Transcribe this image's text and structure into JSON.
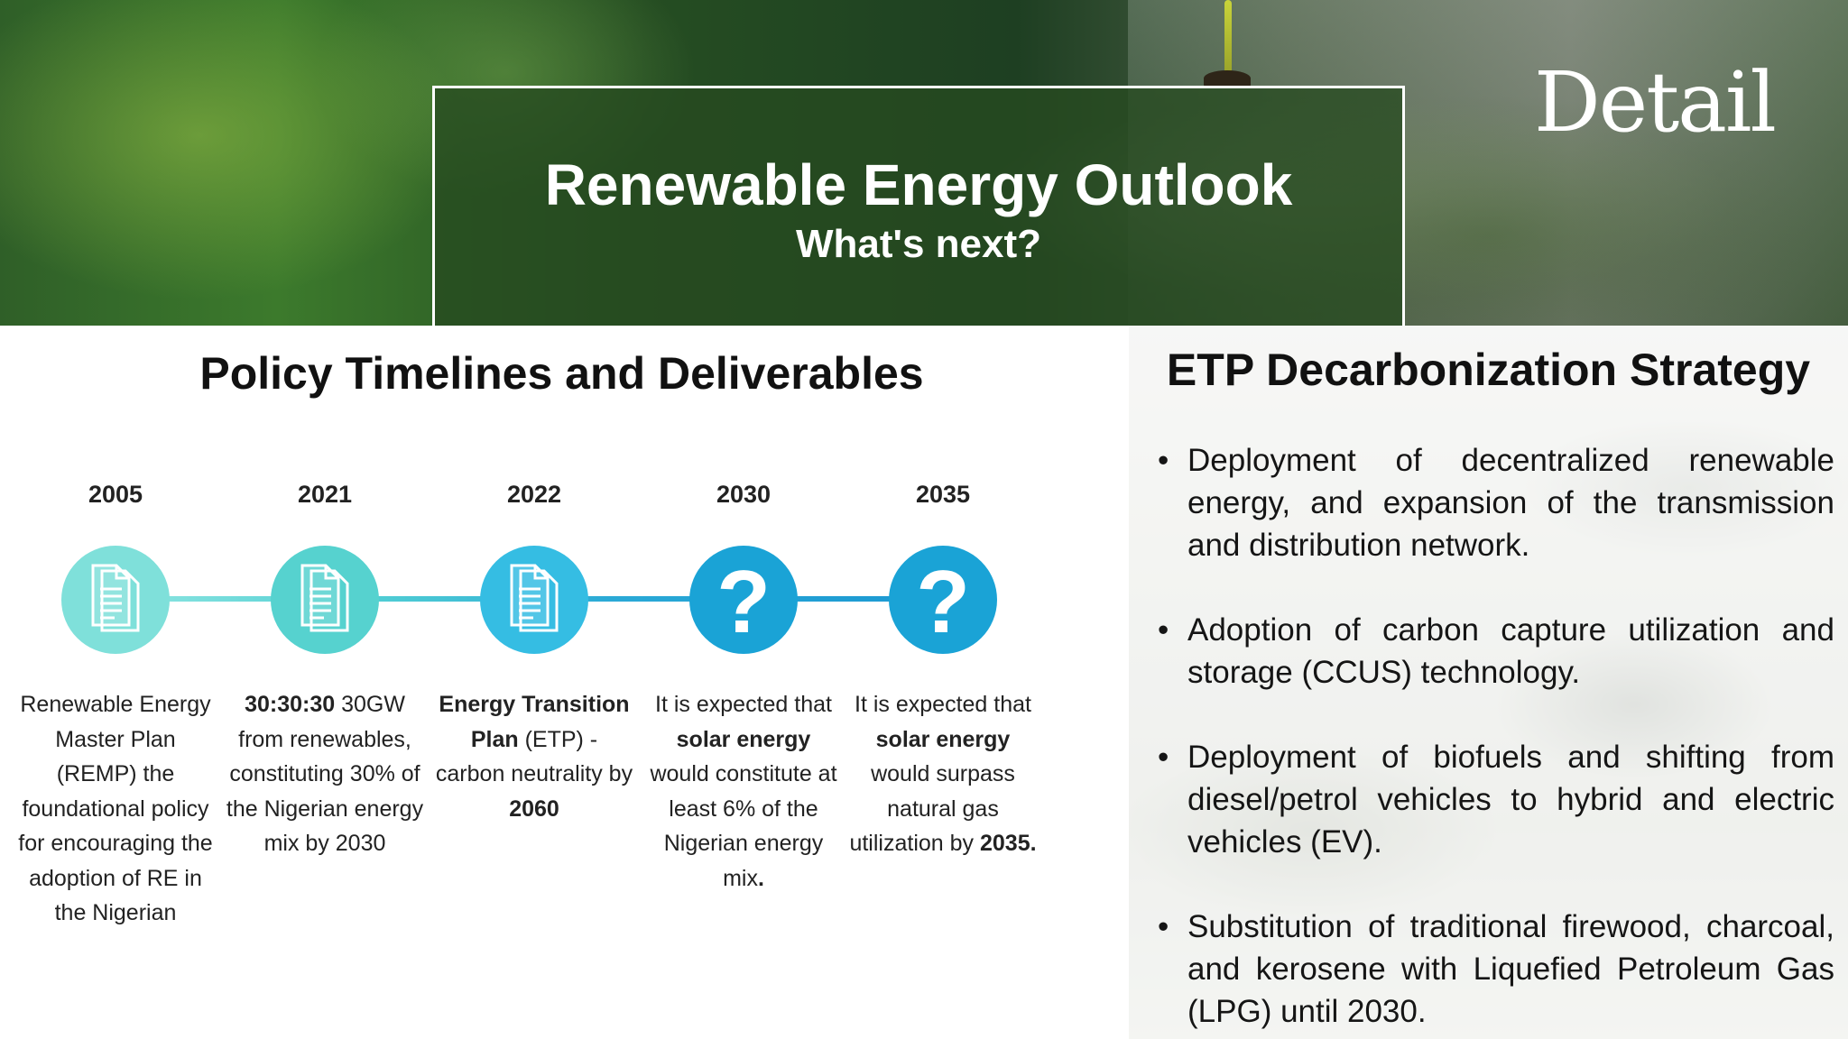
{
  "header": {
    "title": "Renewable Energy Outlook",
    "subtitle": "What's next?",
    "brand": "Detail"
  },
  "timeline": {
    "title": "Policy Timelines and Deliverables",
    "items": [
      {
        "year": "2005",
        "icon": "document-icon",
        "color": "#7fe0da",
        "segments": [
          {
            "t": "Renewable Energy Master Plan (REMP) the foundational policy for encouraging the adoption of RE in the Nigerian",
            "b": false
          }
        ]
      },
      {
        "year": "2021",
        "icon": "document-icon",
        "color": "#56d2cf",
        "segments": [
          {
            "t": "30:30:30",
            "b": true
          },
          {
            "t": " 30GW from renewables, constituting 30% of the Nigerian energy mix by 2030",
            "b": false
          }
        ]
      },
      {
        "year": "2022",
        "icon": "document-icon",
        "color": "#35bde3",
        "segments": [
          {
            "t": "Energy Transition Plan",
            "b": true
          },
          {
            "t": " (ETP) - carbon neutrality by ",
            "b": false
          },
          {
            "t": "2060",
            "b": true
          }
        ]
      },
      {
        "year": "2030",
        "icon": "question-icon",
        "color": "#1aa3d6",
        "segments": [
          {
            "t": "It is expected that ",
            "b": false
          },
          {
            "t": "solar energy",
            "b": true
          },
          {
            "t": " would constitute at least 6% of the Nigerian energy mix",
            "b": false
          },
          {
            "t": ".",
            "b": true
          }
        ]
      },
      {
        "year": "2035",
        "icon": "question-icon",
        "color": "#1aa3d6",
        "segments": [
          {
            "t": "It is expected that ",
            "b": false
          },
          {
            "t": "solar energy",
            "b": true
          },
          {
            "t": " would surpass natural gas utilization by ",
            "b": false
          },
          {
            "t": "2035.",
            "b": true
          }
        ]
      }
    ]
  },
  "strategy": {
    "title": "ETP Decarbonization Strategy",
    "bullet_char": "•",
    "items": [
      "Deployment of decentralized renewable energy, and expansion of the transmission and distribution network.",
      "Adoption of carbon capture utilization and storage (CCUS) technology.",
      "Deployment of biofuels and shifting from diesel/petrol vehicles to hybrid and electric vehicles (EV).",
      "Substitution of traditional firewood, charcoal, and kerosene with Liquefied Petroleum Gas (LPG) until 2030."
    ]
  }
}
